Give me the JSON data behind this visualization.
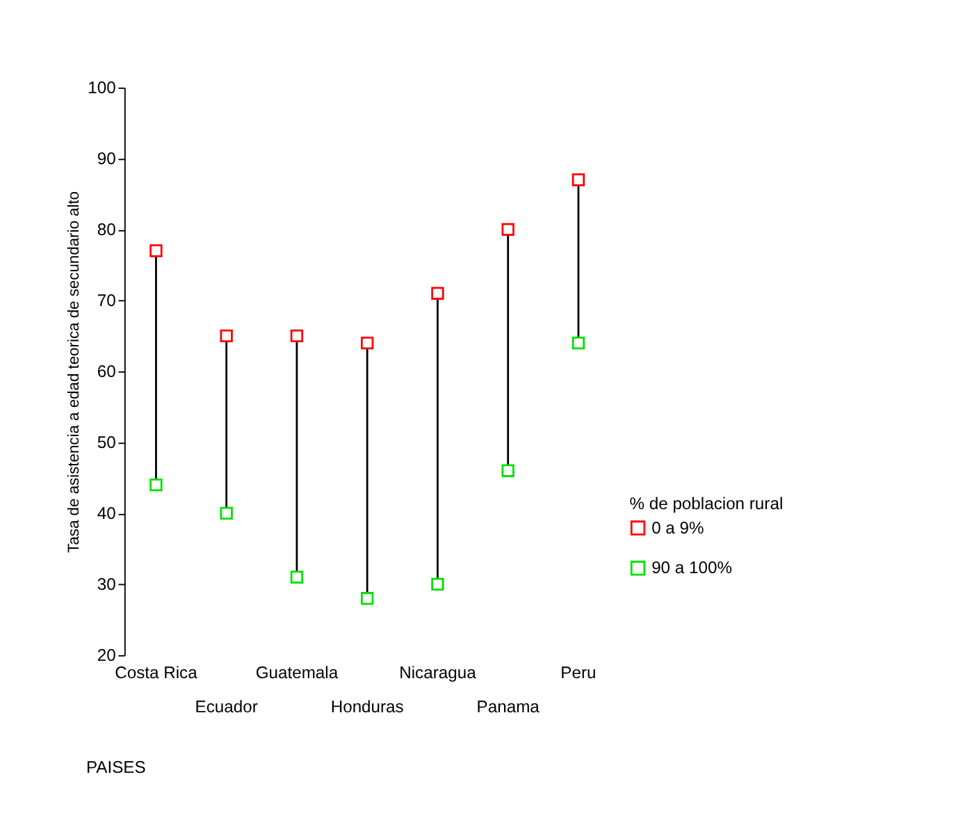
{
  "chart_data": {
    "type": "scatter",
    "xlabel": "PAISES",
    "ylabel": "Tasa de asistencia a edad teorica de secundario alto",
    "legend_title": "% de poblacion rural",
    "categories": [
      "Costa Rica",
      "Ecuador",
      "Guatemala",
      "Honduras",
      "Nicaragua",
      "Panama",
      "Peru"
    ],
    "series": [
      {
        "name": "0 a 9%",
        "color": "#ff0000",
        "values": [
          77,
          65,
          65,
          64,
          71,
          80,
          87
        ]
      },
      {
        "name": "90 a 100%",
        "color": "#00e000",
        "values": [
          44,
          40,
          31,
          28,
          30,
          46,
          64
        ]
      }
    ],
    "ylim": [
      20,
      100
    ],
    "yticks": [
      20,
      30,
      40,
      50,
      60,
      70,
      80,
      90,
      100
    ],
    "grid": false,
    "legend": "right",
    "marker": "square"
  }
}
